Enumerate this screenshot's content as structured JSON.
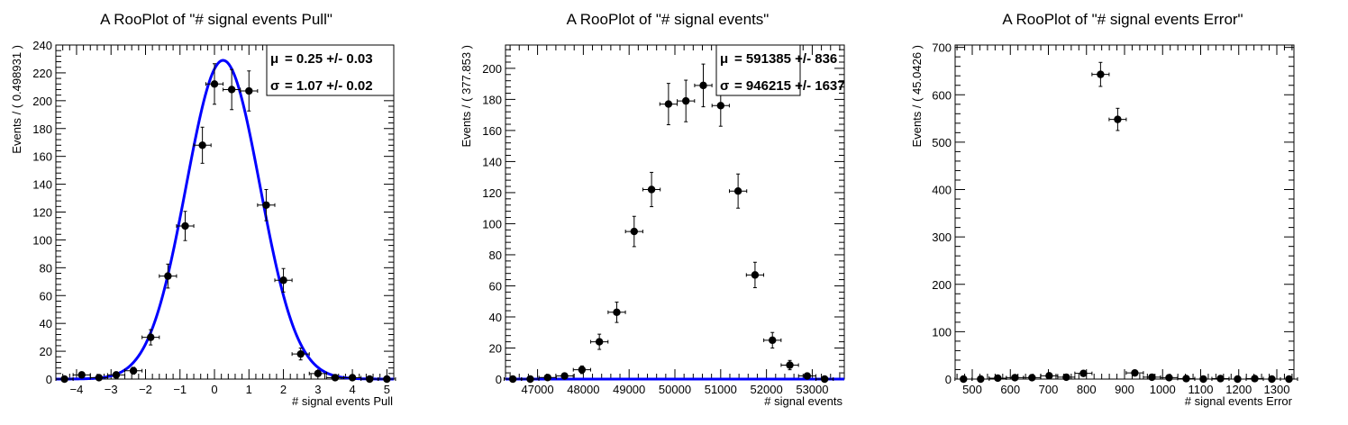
{
  "chart_data": [
    {
      "type": "scatter",
      "title": "A RooPlot of \"# signal events Pull\"",
      "xlabel": "# signal events Pull",
      "ylabel": "Events / ( 0.498931 )",
      "xlim": [
        -4.6,
        5.2
      ],
      "ylim": [
        0,
        240
      ],
      "xticks": [
        -4,
        -3,
        -2,
        -1,
        0,
        1,
        2,
        3,
        4,
        5
      ],
      "yticks": [
        0,
        20,
        40,
        60,
        80,
        100,
        120,
        140,
        160,
        180,
        200,
        220,
        240
      ],
      "xerr": 0.25,
      "points": [
        {
          "x": -4.35,
          "y": 0
        },
        {
          "x": -3.85,
          "y": 3
        },
        {
          "x": -3.35,
          "y": 1
        },
        {
          "x": -2.85,
          "y": 3
        },
        {
          "x": -2.35,
          "y": 6
        },
        {
          "x": -1.85,
          "y": 30
        },
        {
          "x": -1.35,
          "y": 74
        },
        {
          "x": -0.85,
          "y": 110
        },
        {
          "x": -0.35,
          "y": 168
        },
        {
          "x": 0.0,
          "y": 212
        },
        {
          "x": 0.5,
          "y": 208
        },
        {
          "x": 1.0,
          "y": 207
        },
        {
          "x": 1.5,
          "y": 125
        },
        {
          "x": 2.0,
          "y": 71
        },
        {
          "x": 2.5,
          "y": 18
        },
        {
          "x": 3.0,
          "y": 4
        },
        {
          "x": 3.5,
          "y": 1
        },
        {
          "x": 4.0,
          "y": 1
        },
        {
          "x": 4.5,
          "y": 0
        },
        {
          "x": 5.0,
          "y": 0
        }
      ],
      "fit": {
        "type": "gaussian",
        "mean": 0.25,
        "sigma": 1.07,
        "amplitude": 229,
        "color": "#0000ff"
      },
      "stats": [
        {
          "symbol": "μ",
          "text": "=  0.25 +/- 0.03"
        },
        {
          "symbol": "σ",
          "text": "=  1.07 +/- 0.02"
        }
      ]
    },
    {
      "type": "scatter",
      "title": "A RooPlot of \"# signal events\"",
      "xlabel": "# signal events",
      "ylabel": "Events / ( 377.853 )",
      "xlim": [
        46300,
        53700
      ],
      "ylim": [
        0,
        215
      ],
      "xticks": [
        47000,
        48000,
        49000,
        50000,
        51000,
        52000,
        53000
      ],
      "yticks": [
        0,
        20,
        40,
        60,
        80,
        100,
        120,
        140,
        160,
        180,
        200
      ],
      "xerr": 189,
      "points": [
        {
          "x": 46460,
          "y": 0
        },
        {
          "x": 46840,
          "y": 0
        },
        {
          "x": 47220,
          "y": 1
        },
        {
          "x": 47590,
          "y": 2
        },
        {
          "x": 47970,
          "y": 6
        },
        {
          "x": 48350,
          "y": 24
        },
        {
          "x": 48730,
          "y": 43
        },
        {
          "x": 49110,
          "y": 95
        },
        {
          "x": 49490,
          "y": 122
        },
        {
          "x": 49860,
          "y": 177
        },
        {
          "x": 50240,
          "y": 179
        },
        {
          "x": 50620,
          "y": 189
        },
        {
          "x": 51000,
          "y": 176
        },
        {
          "x": 51380,
          "y": 121
        },
        {
          "x": 51750,
          "y": 67
        },
        {
          "x": 52130,
          "y": 25
        },
        {
          "x": 52510,
          "y": 9
        },
        {
          "x": 52890,
          "y": 2
        },
        {
          "x": 53270,
          "y": 0
        }
      ],
      "fit": {
        "type": "flat",
        "value": 0,
        "color": "#0000ff"
      },
      "stats": [
        {
          "symbol": "μ",
          "text": "=  591385 +/- 836"
        },
        {
          "symbol": "σ",
          "text": "=  946215 +/- 1637"
        }
      ]
    },
    {
      "type": "scatter",
      "title": "A RooPlot of \"# signal events Error\"",
      "xlabel": "# signal events Error",
      "ylabel": "Events / ( 45.0426 )",
      "xlim": [
        455,
        1345
      ],
      "ylim": [
        0,
        705
      ],
      "xticks": [
        500,
        600,
        700,
        800,
        900,
        1000,
        1100,
        1200,
        1300
      ],
      "yticks": [
        0,
        100,
        200,
        300,
        400,
        500,
        600,
        700
      ],
      "xerr": 22.5,
      "points": [
        {
          "x": 477,
          "y": 0
        },
        {
          "x": 522,
          "y": 0
        },
        {
          "x": 567,
          "y": 2
        },
        {
          "x": 612,
          "y": 3
        },
        {
          "x": 657,
          "y": 3
        },
        {
          "x": 702,
          "y": 7
        },
        {
          "x": 747,
          "y": 4
        },
        {
          "x": 792,
          "y": 12
        },
        {
          "x": 837,
          "y": 643
        },
        {
          "x": 882,
          "y": 548
        },
        {
          "x": 927,
          "y": 13
        },
        {
          "x": 972,
          "y": 4
        },
        {
          "x": 1017,
          "y": 3
        },
        {
          "x": 1062,
          "y": 1
        },
        {
          "x": 1107,
          "y": 0
        },
        {
          "x": 1152,
          "y": 1
        },
        {
          "x": 1197,
          "y": 0
        },
        {
          "x": 1242,
          "y": 1
        },
        {
          "x": 1287,
          "y": 0
        },
        {
          "x": 1332,
          "y": 0
        }
      ]
    }
  ]
}
